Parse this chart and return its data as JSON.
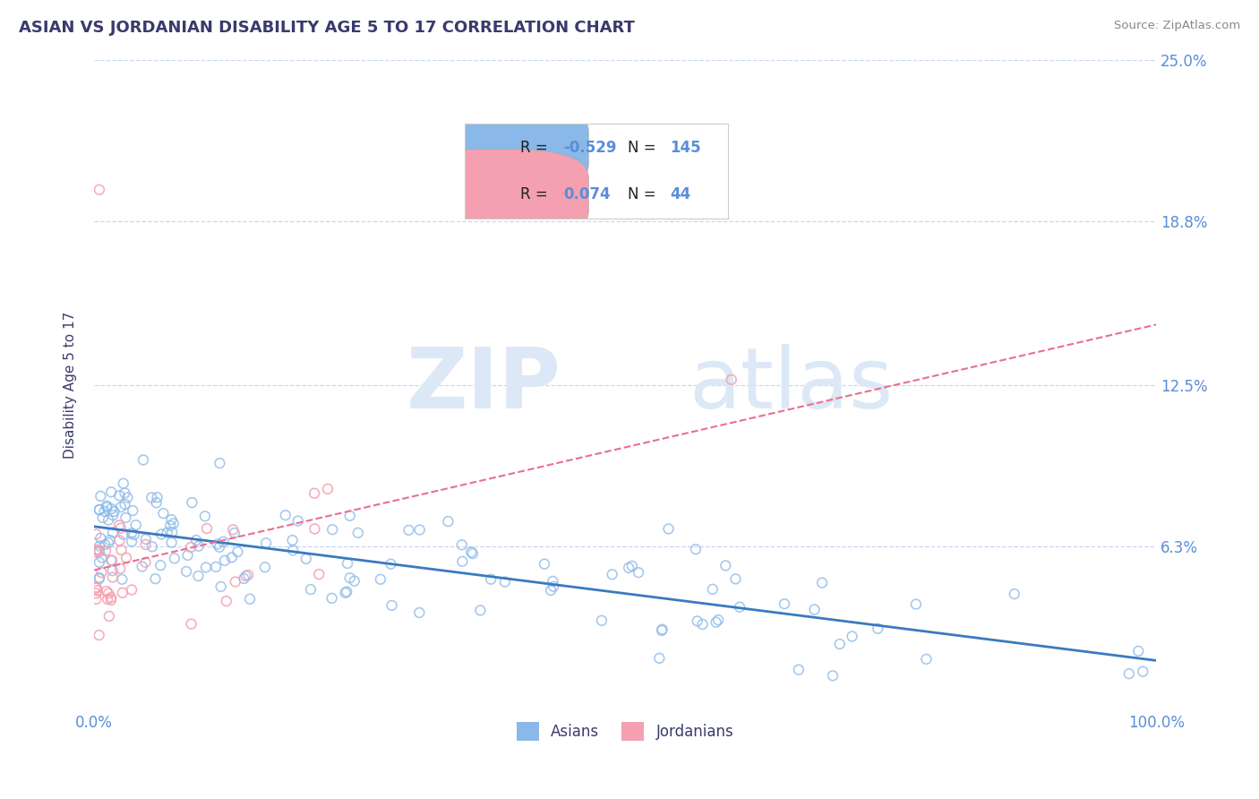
{
  "title": "ASIAN VS JORDANIAN DISABILITY AGE 5 TO 17 CORRELATION CHART",
  "source_text": "Source: ZipAtlas.com",
  "ylabel": "Disability Age 5 to 17",
  "xlim": [
    0.0,
    1.0
  ],
  "ylim": [
    0.0,
    0.25
  ],
  "ytick_vals": [
    0.0,
    0.063,
    0.125,
    0.188,
    0.25
  ],
  "ytick_labels": [
    "",
    "6.3%",
    "12.5%",
    "18.8%",
    "25.0%"
  ],
  "xtick_vals": [
    0.0,
    1.0
  ],
  "xtick_labels": [
    "0.0%",
    "100.0%"
  ],
  "title_color": "#3a3a6e",
  "axis_color": "#5b8dd9",
  "background_color": "#ffffff",
  "grid_color": "#c8d8f0",
  "asian_color": "#8ab8e8",
  "jordanian_color": "#f5a0b0",
  "asian_R": -0.529,
  "asian_N": 145,
  "jordanian_R": 0.074,
  "jordanian_N": 44,
  "watermark_ZIP": "ZIP",
  "watermark_atlas": "atlas",
  "asian_line_color": "#3a7abf",
  "asian_line_solid": true,
  "jordanian_line_color": "#e87090",
  "jordanian_line_dashed": true,
  "source_color": "#888888"
}
